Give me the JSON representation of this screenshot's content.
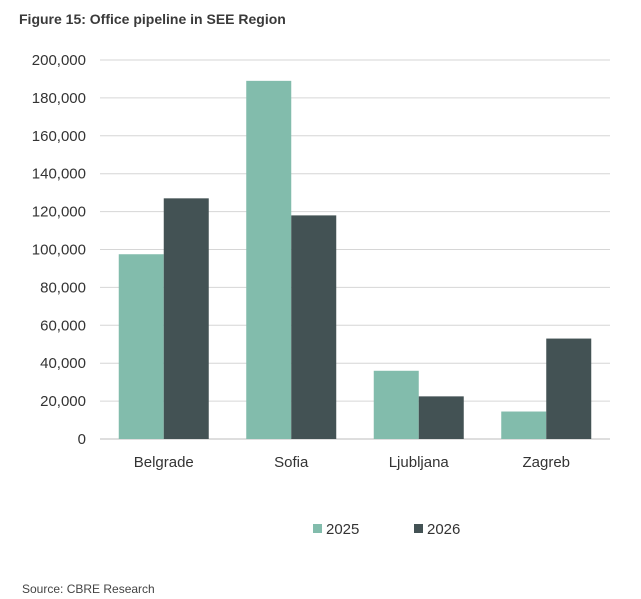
{
  "title": "Figure 15: Office pipeline in SEE Region",
  "source": "Source: CBRE Research",
  "chart_data": {
    "type": "bar",
    "title": "Figure 15: Office pipeline in SEE Region",
    "categories": [
      "Belgrade",
      "Sofia",
      "Ljubljana",
      "Zagreb"
    ],
    "series": [
      {
        "name": "2025",
        "color": "#82bcac",
        "values": [
          97500,
          189000,
          36000,
          14500
        ]
      },
      {
        "name": "2026",
        "color": "#435254",
        "values": [
          127000,
          118000,
          22500,
          53000
        ]
      }
    ],
    "ylim": [
      0,
      200000
    ],
    "yticks": [
      0,
      20000,
      40000,
      60000,
      80000,
      100000,
      120000,
      140000,
      160000,
      180000,
      200000
    ],
    "ytick_labels": [
      "0",
      "20,000",
      "40,000",
      "60,000",
      "80,000",
      "100,000",
      "120,000",
      "140,000",
      "160,000",
      "180,000",
      "200,000"
    ],
    "grid": true,
    "legend": "bottom-center"
  }
}
